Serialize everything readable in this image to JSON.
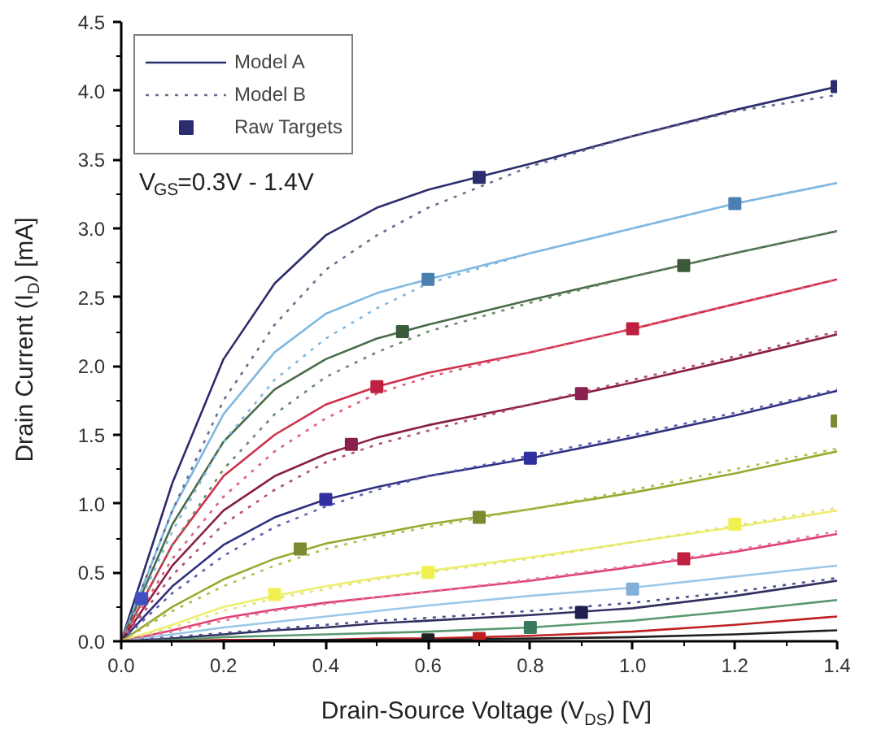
{
  "chart_data": {
    "type": "line",
    "xlabel": "Drain-Source Voltage (V$_{DS}$) [V]",
    "ylabel": "Drain Current (I$_{D}$) [mA]",
    "annotations": [
      "V$_{GS}$=0.3V - 1.4V"
    ],
    "x": [
      0,
      0.1,
      0.2,
      0.3,
      0.4,
      0.5,
      0.6,
      0.8,
      1.0,
      1.2,
      1.4
    ],
    "xlim": [
      0,
      1.4
    ],
    "xticks": [
      {
        "value": 0,
        "label": "0.0"
      },
      0.2,
      0.4,
      0.6,
      0.8,
      {
        "value": 1,
        "label": "1.0"
      },
      1.2,
      1.4
    ],
    "ylim": [
      0,
      4.5
    ],
    "yticks": [
      {
        "value": 0,
        "label": "0.0"
      },
      0.5,
      {
        "value": 1,
        "label": "1.0"
      },
      1.5,
      {
        "value": 2,
        "label": "2.0"
      },
      2.5,
      {
        "value": 3,
        "label": "3.0"
      },
      3.5,
      {
        "value": 4,
        "label": "4.0"
      },
      4.5
    ],
    "grid": false,
    "legend": "top left",
    "series": [
      {
        "name": "Model A",
        "line_style": "solid",
        "color": "#2b2d6e",
        "values": [
          0,
          1.15,
          2.05,
          2.6,
          2.95,
          3.15,
          3.28,
          3.47,
          3.67,
          3.86,
          4.03
        ]
      },
      {
        "line_style": "solid",
        "color": "#7fb8e0",
        "values": [
          0,
          0.95,
          1.65,
          2.1,
          2.38,
          2.53,
          2.63,
          2.82,
          3.0,
          3.18,
          3.33
        ]
      },
      {
        "line_style": "solid",
        "color": "#4a6b4a",
        "values": [
          0,
          0.85,
          1.45,
          1.83,
          2.05,
          2.2,
          2.3,
          2.48,
          2.65,
          2.82,
          2.98
        ]
      },
      {
        "line_style": "solid",
        "color": "#d0304a",
        "values": [
          0,
          0.7,
          1.2,
          1.5,
          1.72,
          1.85,
          1.95,
          2.1,
          2.27,
          2.45,
          2.63
        ]
      },
      {
        "line_style": "solid",
        "color": "#8a2040",
        "values": [
          0,
          0.55,
          0.95,
          1.2,
          1.36,
          1.48,
          1.57,
          1.72,
          1.88,
          2.05,
          2.23
        ]
      },
      {
        "line_style": "solid",
        "color": "#303080",
        "values": [
          0,
          0.4,
          0.7,
          0.9,
          1.03,
          1.12,
          1.2,
          1.33,
          1.48,
          1.64,
          1.82
        ]
      },
      {
        "line_style": "solid",
        "color": "#9aa830",
        "values": [
          0,
          0.25,
          0.45,
          0.6,
          0.71,
          0.78,
          0.85,
          0.96,
          1.08,
          1.22,
          1.38
        ]
      },
      {
        "line_style": "solid",
        "color": "#eeee70",
        "values": [
          0,
          0.12,
          0.25,
          0.33,
          0.4,
          0.46,
          0.51,
          0.61,
          0.72,
          0.83,
          0.95
        ]
      },
      {
        "line_style": "solid",
        "color": "#e04070",
        "values": [
          0,
          0.08,
          0.17,
          0.23,
          0.28,
          0.32,
          0.36,
          0.44,
          0.54,
          0.65,
          0.78
        ]
      },
      {
        "line_style": "solid",
        "color": "#9cc8e8",
        "values": [
          0,
          0.05,
          0.1,
          0.14,
          0.18,
          0.22,
          0.26,
          0.33,
          0.39,
          0.47,
          0.55
        ]
      },
      {
        "line_style": "solid",
        "color": "#303060",
        "values": [
          0,
          0.02,
          0.05,
          0.08,
          0.1,
          0.13,
          0.15,
          0.19,
          0.24,
          0.33,
          0.44
        ]
      },
      {
        "line_style": "solid",
        "color": "#5a9a70",
        "values": [
          0,
          0.01,
          0.03,
          0.04,
          0.05,
          0.06,
          0.07,
          0.1,
          0.15,
          0.22,
          0.3
        ]
      },
      {
        "line_style": "solid",
        "color": "#c02020",
        "values": [
          0,
          0,
          0.01,
          0.01,
          0.01,
          0.02,
          0.02,
          0.04,
          0.07,
          0.12,
          0.18
        ]
      },
      {
        "line_style": "solid",
        "color": "#202020",
        "values": [
          0,
          0,
          0,
          0.01,
          0.01,
          0.01,
          0.01,
          0.02,
          0.03,
          0.05,
          0.08
        ]
      },
      {
        "name": "Model B",
        "line_style": "dotted",
        "color": "#6a6a90",
        "values": [
          0,
          0.95,
          1.75,
          2.3,
          2.7,
          2.95,
          3.15,
          3.45,
          3.67,
          3.85,
          3.97
        ]
      },
      {
        "line_style": "dotted",
        "color": "#7fb8e0",
        "values": [
          0,
          0.8,
          1.45,
          1.9,
          2.2,
          2.42,
          2.6,
          2.82,
          3.0,
          3.18,
          3.33
        ]
      },
      {
        "line_style": "dotted",
        "color": "#6a8a6a",
        "values": [
          0,
          0.7,
          1.25,
          1.65,
          1.92,
          2.1,
          2.25,
          2.46,
          2.65,
          2.82,
          2.98
        ]
      },
      {
        "line_style": "dotted",
        "color": "#e06080",
        "values": [
          0,
          0.6,
          1.05,
          1.38,
          1.62,
          1.8,
          1.92,
          2.1,
          2.27,
          2.45,
          2.63
        ]
      },
      {
        "line_style": "dotted",
        "color": "#b05070",
        "values": [
          0,
          0.48,
          0.85,
          1.1,
          1.3,
          1.43,
          1.53,
          1.72,
          1.9,
          2.07,
          2.25
        ]
      },
      {
        "line_style": "dotted",
        "color": "#6060b0",
        "values": [
          0,
          0.35,
          0.62,
          0.83,
          0.98,
          1.1,
          1.2,
          1.35,
          1.5,
          1.66,
          1.83
        ]
      },
      {
        "line_style": "dotted",
        "color": "#b0c050",
        "values": [
          0,
          0.22,
          0.4,
          0.55,
          0.67,
          0.76,
          0.83,
          0.96,
          1.1,
          1.25,
          1.4
        ]
      },
      {
        "line_style": "dotted",
        "color": "#e0e080",
        "values": [
          0,
          0.1,
          0.22,
          0.31,
          0.38,
          0.45,
          0.5,
          0.6,
          0.72,
          0.84,
          0.97
        ]
      },
      {
        "line_style": "dotted",
        "color": "#e080a0",
        "values": [
          0,
          0.07,
          0.15,
          0.22,
          0.27,
          0.32,
          0.36,
          0.45,
          0.55,
          0.66,
          0.8
        ]
      },
      {
        "line_style": "dotted",
        "color": "#505090",
        "values": [
          0,
          0.03,
          0.06,
          0.09,
          0.12,
          0.15,
          0.17,
          0.22,
          0.28,
          0.36,
          0.46
        ]
      },
      {
        "name": "Raw Targets",
        "type": "scatter",
        "marker": "square",
        "x": [
          0.7,
          1.4,
          0.6,
          1.2,
          0.55,
          1.1,
          0.5,
          1.0,
          0.45,
          0.9,
          0.4,
          0.8,
          0.35,
          0.7,
          1.4,
          0.3,
          0.6,
          1.2,
          1.1,
          1.0,
          0.9,
          0.8,
          0.7,
          0.6,
          0.04
        ],
        "values": [
          3.37,
          4.03,
          2.63,
          3.18,
          2.25,
          2.73,
          1.85,
          2.27,
          1.43,
          1.8,
          1.03,
          1.33,
          0.67,
          0.9,
          1.6,
          0.34,
          0.5,
          0.85,
          0.6,
          0.38,
          0.21,
          0.1,
          0.02,
          0.01,
          0.31
        ],
        "colors": [
          "#2b2d6e",
          "#2b2d6e",
          "#4a80b0",
          "#4a80b0",
          "#3a5a3a",
          "#3a5a3a",
          "#c02040",
          "#c02040",
          "#8a2050",
          "#8a2050",
          "#3030a0",
          "#3030a0",
          "#7a8a30",
          "#7a8a30",
          "#7a8a30",
          "#f0f050",
          "#f0f050",
          "#f0f050",
          "#c02040",
          "#80b0d8",
          "#202050",
          "#3a7a5a",
          "#c02020",
          "#202020",
          "#4050c0"
        ]
      }
    ]
  }
}
